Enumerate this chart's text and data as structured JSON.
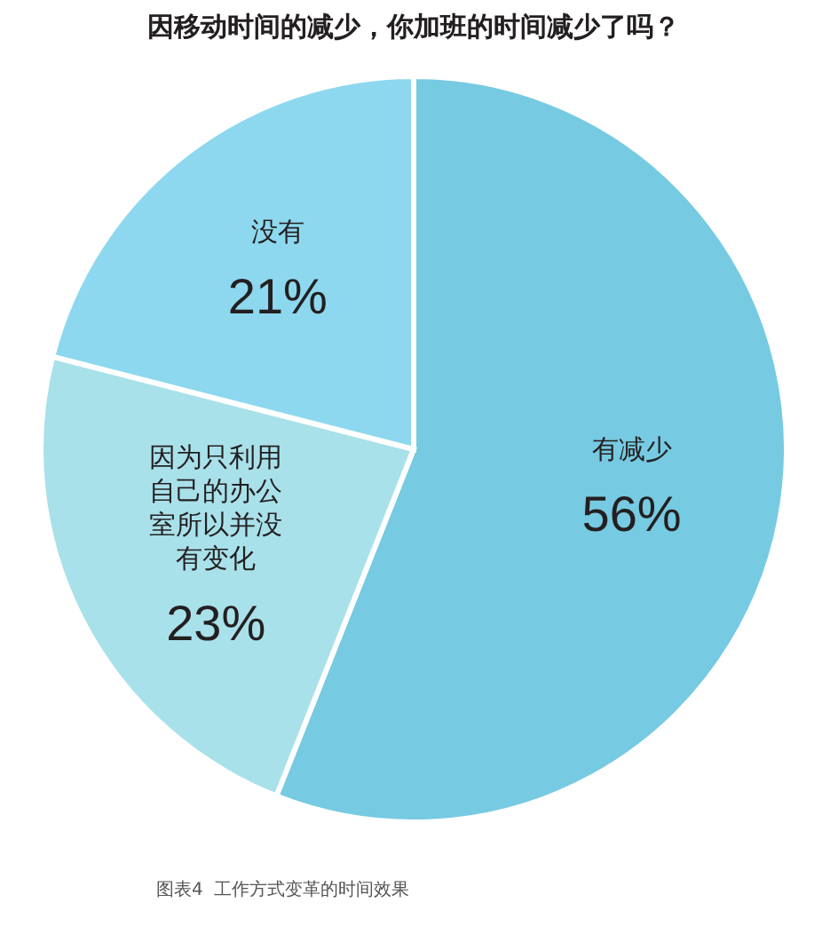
{
  "chart_data": {
    "type": "pie",
    "title": "因移动时间的减少，你加班的时间减少了吗？",
    "categories": [
      "有减少",
      "因为只利用自己的办公室所以并没有变化",
      "没有"
    ],
    "values": [
      56,
      23,
      21
    ],
    "colors": [
      "#76cae2",
      "#a9e1ea",
      "#8dd8ee"
    ],
    "value_labels": [
      "56%",
      "23%",
      "21%"
    ],
    "legend": false,
    "annotations": [
      "图表4  工作方式变革的时间效果"
    ]
  }
}
